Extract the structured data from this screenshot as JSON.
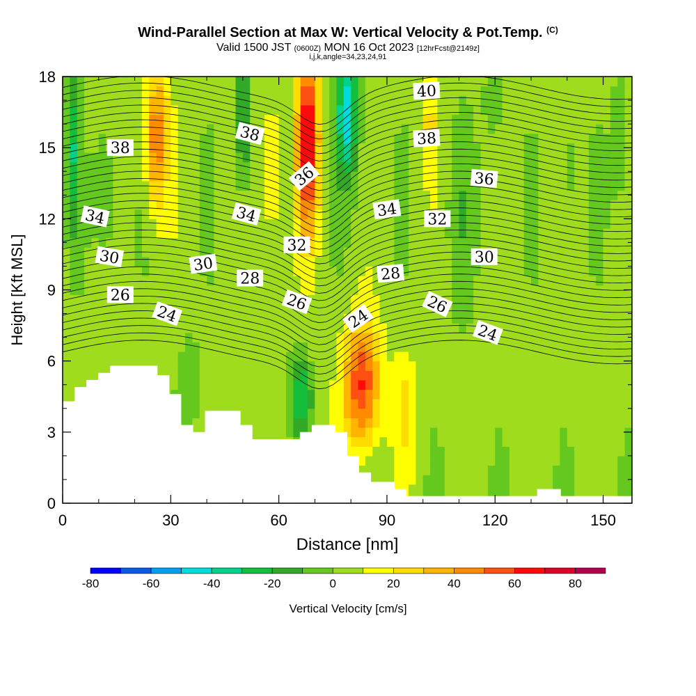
{
  "title": "Wind-Parallel Section at Max W: Vertical Velocity & Pot.Temp.",
  "title_mark": "(C)",
  "subtitle": {
    "valid_prefix": "Valid 1500 JST",
    "utc": "(0600Z)",
    "date": "MON 16 Oct 2023",
    "forecast": "[12hrFcst@2149z]"
  },
  "subtitle2": "i,j,k,angle=34,23,24,91",
  "colors": {
    "bins": [
      "#0000ff",
      "#0a5ae6",
      "#00a0f0",
      "#00dcdc",
      "#00d28c",
      "#14be3c",
      "#32aa28",
      "#64c81e",
      "#a0dc1e",
      "#ffff00",
      "#ffdc00",
      "#ffb400",
      "#ff8c00",
      "#ff5014",
      "#ff0a0a",
      "#dc0028",
      "#b40050",
      "#960064",
      "#5a0096"
    ],
    "terrain": "#ffffff",
    "contour": "#000000"
  },
  "chart_data": {
    "type": "heatmap",
    "x": {
      "label": "Distance [nm]",
      "range": [
        0,
        158
      ],
      "ticks": [
        0,
        30,
        60,
        90,
        120,
        150
      ],
      "minor_step": 10
    },
    "y": {
      "label": "Height [Kft MSL]",
      "range": [
        0,
        18
      ],
      "ticks": [
        0,
        3,
        6,
        9,
        12,
        15,
        18
      ],
      "minor_step": 1
    },
    "colorbar": {
      "label": "Vertical Velocity [cm/s]",
      "edges": [
        -80,
        -70,
        -60,
        -50,
        -40,
        -30,
        -20,
        -10,
        0,
        10,
        20,
        30,
        40,
        50,
        60,
        70,
        80,
        90
      ],
      "tick_labels": [
        "-80",
        "-60",
        "-40",
        "-20",
        "0",
        "20",
        "40",
        "60",
        "80"
      ],
      "tick_values": [
        -80,
        -60,
        -40,
        -20,
        0,
        20,
        40,
        60,
        80
      ]
    },
    "terrain_heights": [
      4.3,
      4.9,
      5.2,
      5.5,
      5.8,
      5.8,
      5.8,
      5.8,
      5.4,
      4.6,
      3.3,
      3.0,
      3.9,
      3.9,
      3.9,
      3.3,
      2.7,
      2.7,
      2.7,
      2.7,
      3.0,
      3.3,
      3.3,
      3.0,
      2.0,
      1.3,
      0.9,
      0.9,
      0.6,
      0.3,
      0.3,
      0.3,
      0.3,
      0.3,
      0.3,
      0.3,
      0.3,
      0.3,
      0.3,
      0.3,
      0.6,
      0.6,
      0.3,
      0.3,
      0.3,
      0.3,
      0.3,
      0.3
    ],
    "vertical_velocity_features": [
      {
        "x": 83,
        "z": 5.0,
        "sx": 5,
        "sz": 2.6,
        "w": 58
      },
      {
        "x": 68,
        "z": 15.5,
        "sx": 3,
        "sz": 4.0,
        "w": 68
      },
      {
        "x": 26,
        "z": 15.5,
        "sx": 3.2,
        "sz": 3.0,
        "w": 45
      },
      {
        "x": 79,
        "z": 16.5,
        "sx": 3,
        "sz": 2.8,
        "w": -50
      },
      {
        "x": 66,
        "z": 4.5,
        "sx": 3,
        "sz": 1.6,
        "w": -35
      },
      {
        "x": 3,
        "z": 15,
        "sx": 1.8,
        "sz": 3.5,
        "w": -30
      },
      {
        "x": 50,
        "z": 16,
        "sx": 2,
        "sz": 3,
        "w": -30
      },
      {
        "x": 58,
        "z": 14,
        "sx": 3,
        "sz": 3,
        "w": 20
      },
      {
        "x": 102,
        "z": 16,
        "sx": 2,
        "sz": 2,
        "w": 18
      },
      {
        "x": 95,
        "z": 4,
        "sx": 3,
        "sz": 2.5,
        "w": 18
      },
      {
        "x": 12,
        "z": 13,
        "sx": 3,
        "sz": 3,
        "w": -15
      },
      {
        "x": 120,
        "z": 17,
        "sx": 3,
        "sz": 2,
        "w": -12
      },
      {
        "x": 110,
        "z": 12,
        "sx": 4,
        "sz": 4,
        "w": -10
      },
      {
        "x": 155,
        "z": 15,
        "sx": 3,
        "sz": 4,
        "w": -10
      },
      {
        "x": 35,
        "z": 5,
        "sx": 3,
        "sz": 2,
        "w": -12
      },
      {
        "x": 140,
        "z": 14,
        "sx": 2,
        "sz": 3,
        "w": -12
      }
    ],
    "theta_contour_labels": [
      {
        "value": "40",
        "x": 101,
        "z": 17.4,
        "angle": -3
      },
      {
        "value": "38",
        "x": 16,
        "z": 15.0,
        "angle": 0
      },
      {
        "value": "38",
        "x": 52,
        "z": 15.6,
        "angle": 15
      },
      {
        "value": "38",
        "x": 101,
        "z": 15.4,
        "angle": -3
      },
      {
        "value": "36",
        "x": 67,
        "z": 13.8,
        "angle": -40
      },
      {
        "value": "36",
        "x": 117,
        "z": 13.7,
        "angle": 5
      },
      {
        "value": "34",
        "x": 9,
        "z": 12.1,
        "angle": 12
      },
      {
        "value": "34",
        "x": 51,
        "z": 12.2,
        "angle": 15
      },
      {
        "value": "34",
        "x": 90,
        "z": 12.4,
        "angle": -8
      },
      {
        "value": "32",
        "x": 104,
        "z": 12.0,
        "angle": 0
      },
      {
        "value": "32",
        "x": 65,
        "z": 10.9,
        "angle": 0
      },
      {
        "value": "30",
        "x": 13,
        "z": 10.4,
        "angle": 10
      },
      {
        "value": "30",
        "x": 39,
        "z": 10.1,
        "angle": -8
      },
      {
        "value": "30",
        "x": 117,
        "z": 10.4,
        "angle": 0
      },
      {
        "value": "28",
        "x": 52,
        "z": 9.5,
        "angle": 0
      },
      {
        "value": "28",
        "x": 91,
        "z": 9.7,
        "angle": -5
      },
      {
        "value": "26",
        "x": 16,
        "z": 8.8,
        "angle": 0
      },
      {
        "value": "26",
        "x": 65,
        "z": 8.5,
        "angle": 20
      },
      {
        "value": "26",
        "x": 104,
        "z": 8.4,
        "angle": 25
      },
      {
        "value": "24",
        "x": 29,
        "z": 8.0,
        "angle": 20
      },
      {
        "value": "24",
        "x": 82,
        "z": 7.8,
        "angle": -35
      },
      {
        "value": "24",
        "x": 118,
        "z": 7.2,
        "angle": 20
      }
    ]
  }
}
